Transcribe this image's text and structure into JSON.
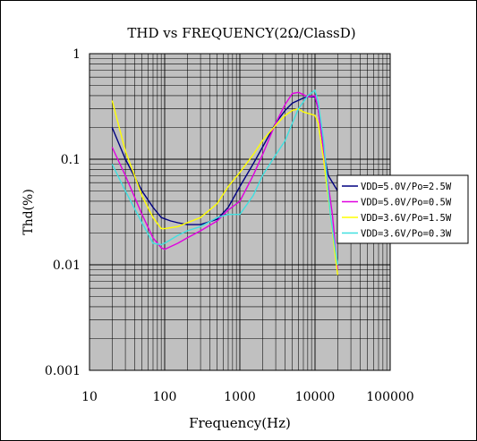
{
  "chart_data": {
    "type": "line",
    "title": "THD vs FREQUENCY(2Ω/ClassD)",
    "xlabel": "Frequency(Hz)",
    "ylabel": "Thd(%)",
    "x_scale": "log",
    "y_scale": "log",
    "xlim": [
      10,
      100000
    ],
    "ylim": [
      0.001,
      1
    ],
    "x_ticks": [
      10,
      100,
      1000,
      10000,
      100000
    ],
    "x_tick_labels": [
      "10",
      "100",
      "1000",
      "10000",
      "100000"
    ],
    "y_ticks": [
      1,
      0.1,
      0.01,
      0.001
    ],
    "y_tick_labels": [
      "1",
      "0.1",
      "0.01",
      "0.001"
    ],
    "grid": true,
    "plot_background": "#c0c0c0",
    "legend_position": "right",
    "series": [
      {
        "name": "VDD=5.0V/Po=2.5W",
        "color": "#000080",
        "points": [
          [
            20,
            0.2
          ],
          [
            30,
            0.1
          ],
          [
            50,
            0.05
          ],
          [
            70,
            0.035
          ],
          [
            90,
            0.028
          ],
          [
            120,
            0.026
          ],
          [
            150,
            0.025
          ],
          [
            200,
            0.024
          ],
          [
            300,
            0.024
          ],
          [
            500,
            0.027
          ],
          [
            700,
            0.035
          ],
          [
            1000,
            0.055
          ],
          [
            1500,
            0.09
          ],
          [
            2000,
            0.13
          ],
          [
            3000,
            0.22
          ],
          [
            4000,
            0.29
          ],
          [
            5000,
            0.34
          ],
          [
            7000,
            0.38
          ],
          [
            8000,
            0.39
          ],
          [
            10000,
            0.39
          ],
          [
            11000,
            0.3
          ],
          [
            13000,
            0.12
          ],
          [
            15000,
            0.07
          ],
          [
            20000,
            0.05
          ]
        ]
      },
      {
        "name": "VDD=5.0V/Po=0.5W",
        "color": "#e000e0",
        "points": [
          [
            20,
            0.13
          ],
          [
            30,
            0.07
          ],
          [
            50,
            0.03
          ],
          [
            70,
            0.018
          ],
          [
            90,
            0.0145
          ],
          [
            100,
            0.014
          ],
          [
            150,
            0.016
          ],
          [
            200,
            0.018
          ],
          [
            300,
            0.021
          ],
          [
            500,
            0.026
          ],
          [
            700,
            0.033
          ],
          [
            1000,
            0.04
          ],
          [
            1500,
            0.07
          ],
          [
            2000,
            0.11
          ],
          [
            3000,
            0.22
          ],
          [
            4000,
            0.33
          ],
          [
            5000,
            0.42
          ],
          [
            6000,
            0.43
          ],
          [
            7000,
            0.41
          ],
          [
            8000,
            0.39
          ],
          [
            10000,
            0.4
          ],
          [
            11000,
            0.3
          ],
          [
            13000,
            0.12
          ],
          [
            17000,
            0.03
          ],
          [
            20000,
            0.009
          ]
        ]
      },
      {
        "name": "VDD=3.6V/Po=1.5W",
        "color": "#ffff00",
        "points": [
          [
            20,
            0.36
          ],
          [
            30,
            0.12
          ],
          [
            50,
            0.045
          ],
          [
            70,
            0.028
          ],
          [
            90,
            0.022
          ],
          [
            100,
            0.022
          ],
          [
            150,
            0.023
          ],
          [
            200,
            0.025
          ],
          [
            300,
            0.028
          ],
          [
            500,
            0.038
          ],
          [
            700,
            0.055
          ],
          [
            1000,
            0.075
          ],
          [
            1500,
            0.11
          ],
          [
            2000,
            0.15
          ],
          [
            3000,
            0.21
          ],
          [
            4000,
            0.26
          ],
          [
            5000,
            0.29
          ],
          [
            6000,
            0.3
          ],
          [
            7000,
            0.28
          ],
          [
            10000,
            0.26
          ],
          [
            11000,
            0.22
          ],
          [
            13000,
            0.1
          ],
          [
            16000,
            0.03
          ],
          [
            20000,
            0.008
          ]
        ]
      },
      {
        "name": "VDD=3.6V/Po=0.3W",
        "color": "#40e0e0",
        "points": [
          [
            20,
            0.09
          ],
          [
            30,
            0.05
          ],
          [
            50,
            0.025
          ],
          [
            70,
            0.016
          ],
          [
            90,
            0.0155
          ],
          [
            100,
            0.016
          ],
          [
            150,
            0.019
          ],
          [
            200,
            0.021
          ],
          [
            300,
            0.023
          ],
          [
            500,
            0.028
          ],
          [
            700,
            0.03
          ],
          [
            1000,
            0.03
          ],
          [
            1500,
            0.045
          ],
          [
            2000,
            0.07
          ],
          [
            3000,
            0.11
          ],
          [
            4000,
            0.15
          ],
          [
            5000,
            0.22
          ],
          [
            6000,
            0.3
          ],
          [
            7000,
            0.35
          ],
          [
            8000,
            0.4
          ],
          [
            10000,
            0.45
          ],
          [
            11000,
            0.35
          ],
          [
            13000,
            0.15
          ],
          [
            16000,
            0.03
          ],
          [
            20000,
            0.01
          ]
        ]
      }
    ]
  }
}
